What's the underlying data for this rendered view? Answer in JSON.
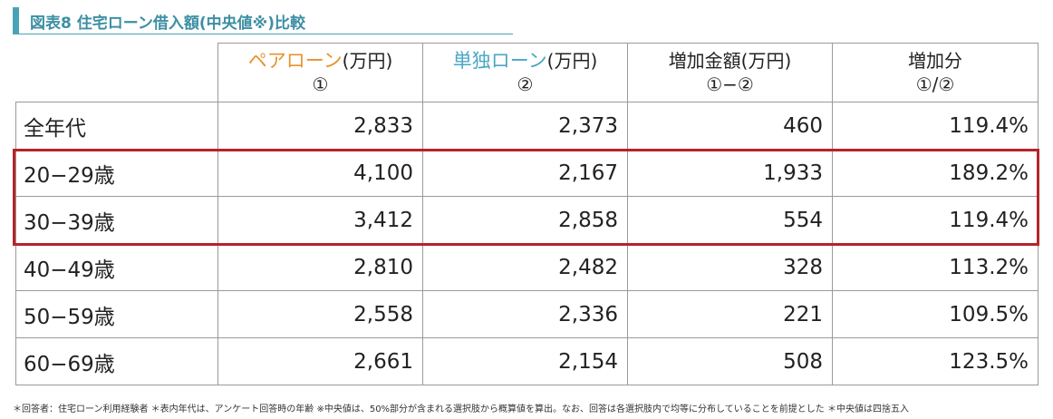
{
  "title": "図表8 住宅ローン借入額(中央値※)比較",
  "header": {
    "col1_main": "ペアローン",
    "col1_unit": "(万円)",
    "col1_sub": "①",
    "col2_main": "単独ローン",
    "col2_unit": "(万円)",
    "col2_sub": "②",
    "col3_main": "増加金額(万円)",
    "col3_sub": "①−②",
    "col4_main": "増加分",
    "col4_sub": "①/②"
  },
  "rows": [
    {
      "label": "全年代",
      "pair": "2,833",
      "single": "2,373",
      "diff": "460",
      "ratio": "119.4%"
    },
    {
      "label": "20−29歳",
      "pair": "4,100",
      "single": "2,167",
      "diff": "1,933",
      "ratio": "189.2%"
    },
    {
      "label": "30−39歳",
      "pair": "3,412",
      "single": "2,858",
      "diff": "554",
      "ratio": "119.4%"
    },
    {
      "label": "40−49歳",
      "pair": "2,810",
      "single": "2,482",
      "diff": "328",
      "ratio": "113.2%"
    },
    {
      "label": "50−59歳",
      "pair": "2,558",
      "single": "2,336",
      "diff": "221",
      "ratio": "109.5%"
    },
    {
      "label": "60−69歳",
      "pair": "2,661",
      "single": "2,154",
      "diff": "508",
      "ratio": "123.5%"
    }
  ],
  "footnote": "＊回答者：住宅ローン利用経験者 ＊表内年代は、アンケート回答時の年齢 ※中央値は、50%部分が含まれる選択肢から概算値を算出。なお、回答は各選択肢内で均等に分布していることを前提とした ＊中央値は四捨五入",
  "colors": {
    "accent": "#4aa3b5",
    "orange": "#e8922e",
    "blue": "#4aa7c4",
    "highlight": "#b5232a"
  }
}
